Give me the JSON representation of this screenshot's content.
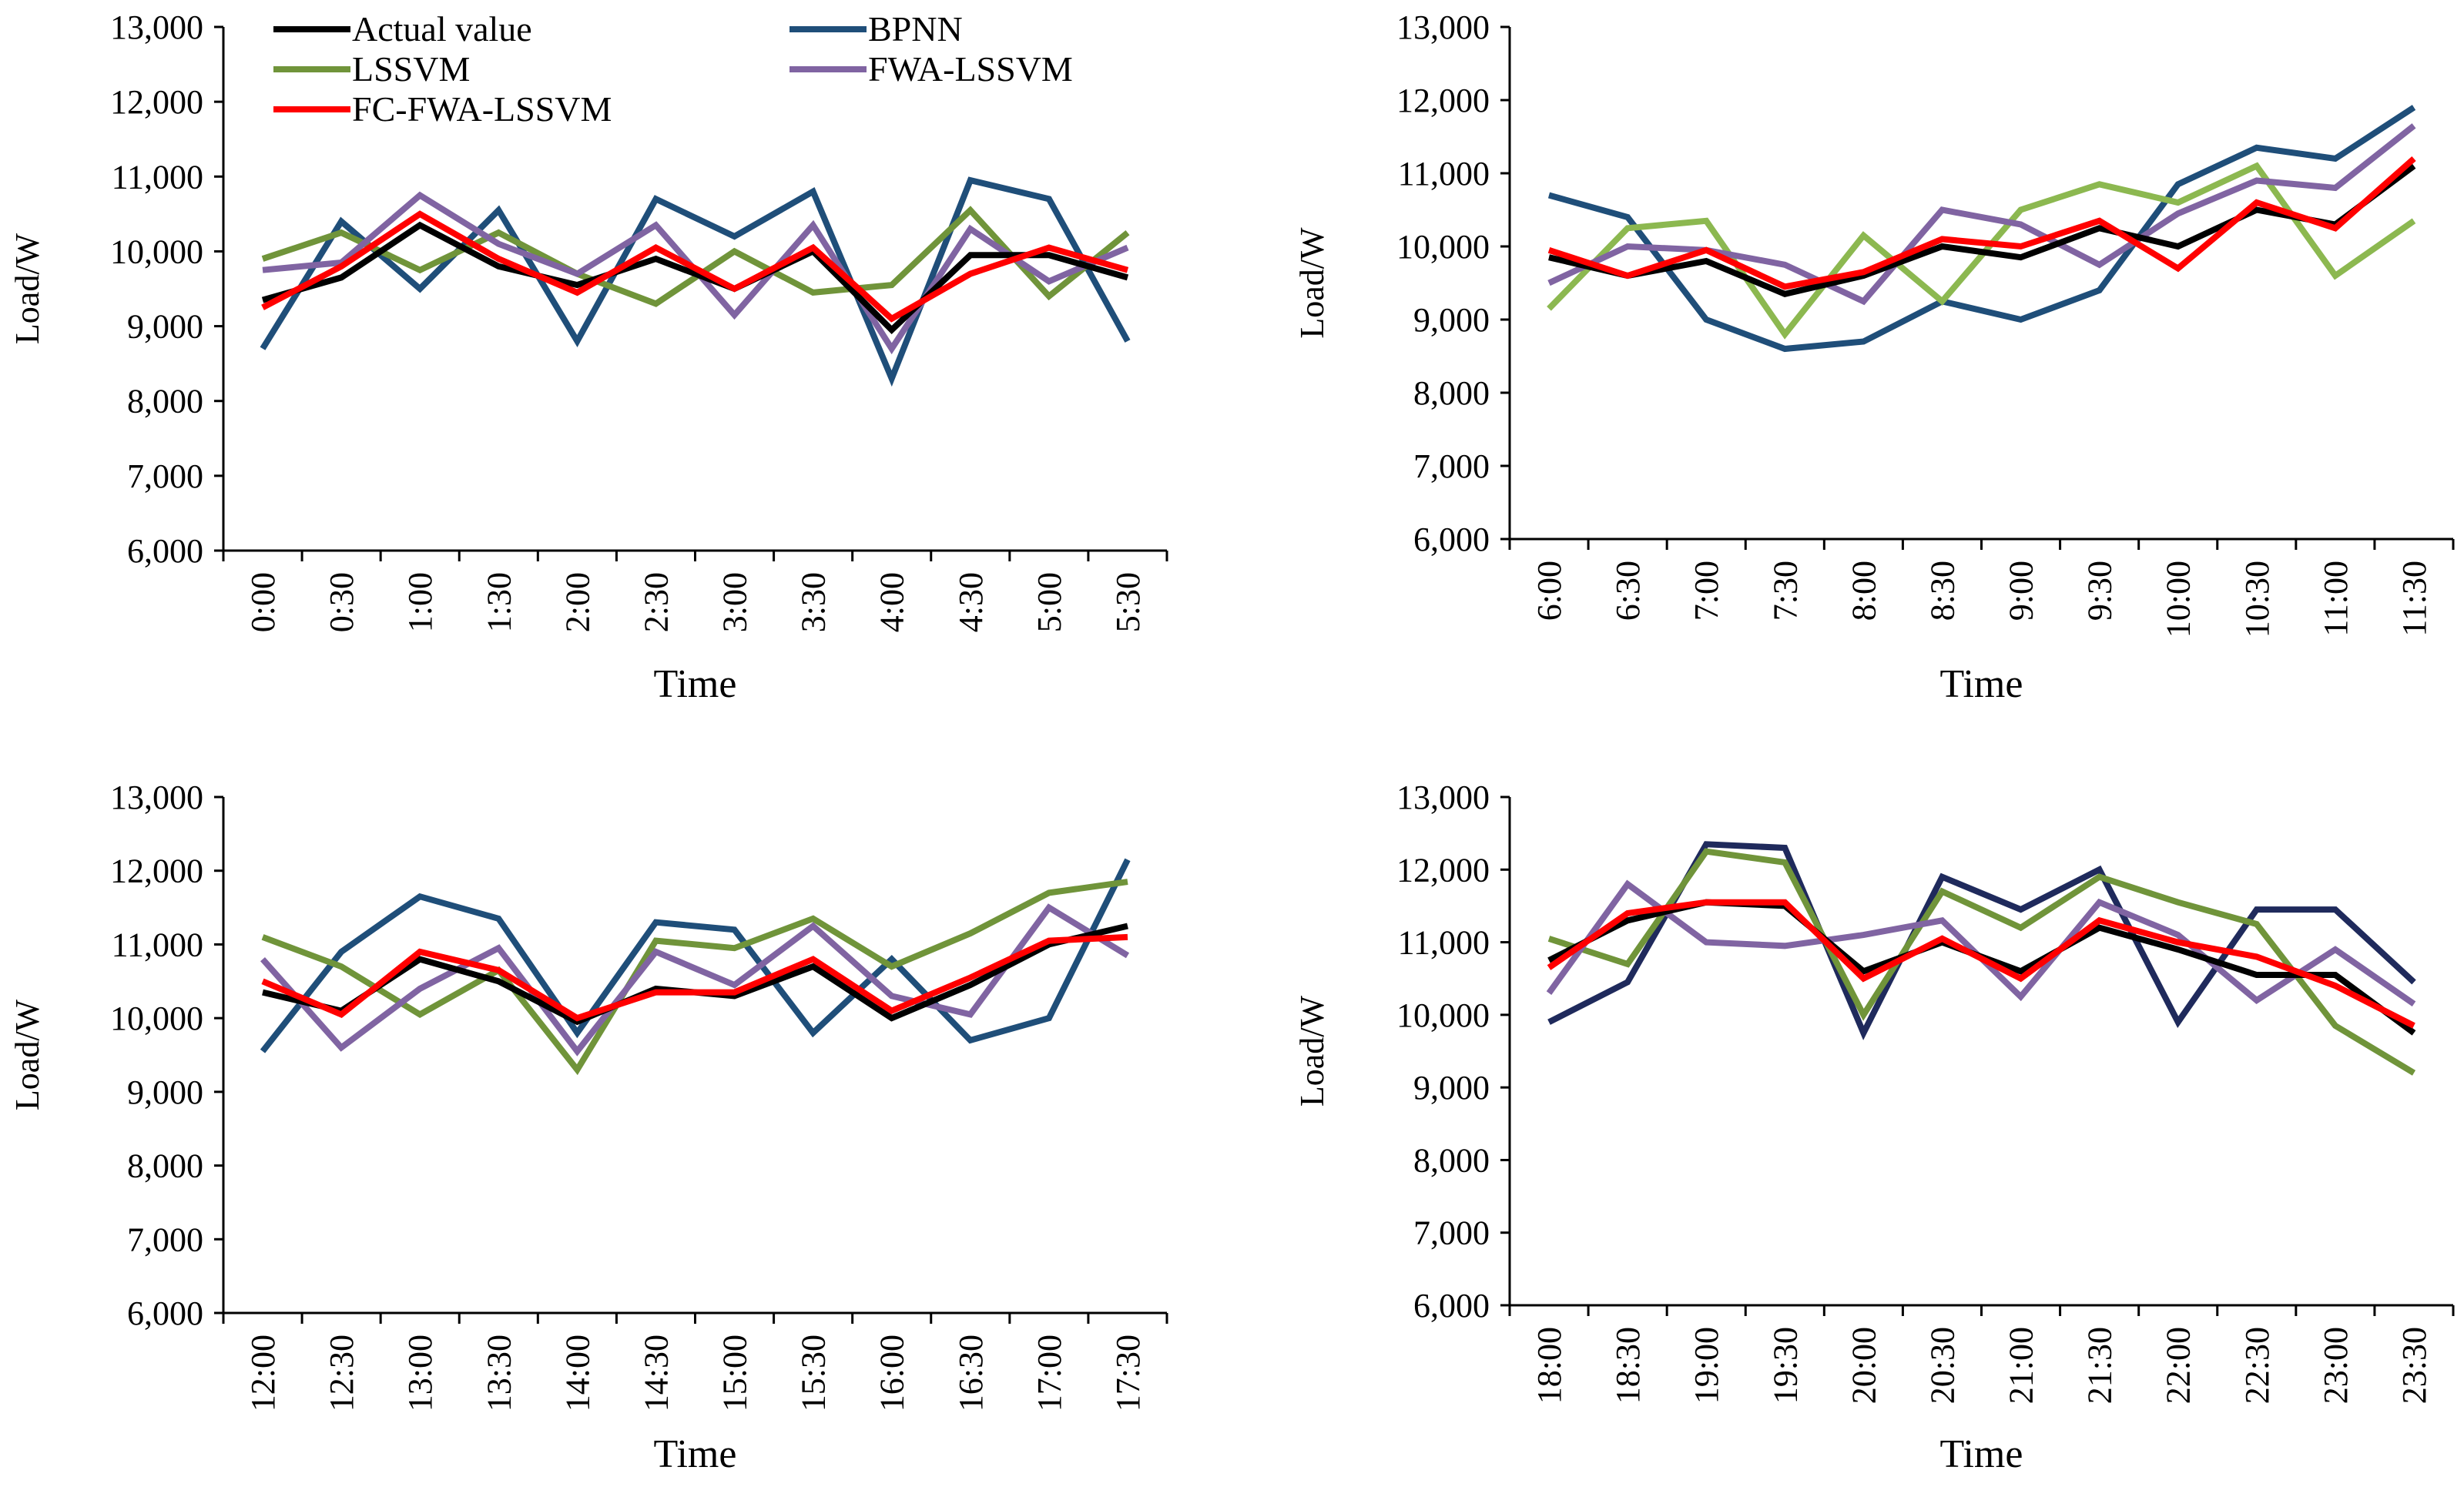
{
  "figure": {
    "series_styles": [
      {
        "name": "Actual value",
        "color": "#000000"
      },
      {
        "name": "BPNN",
        "color": "#1f4e79"
      },
      {
        "name": "LSSVM",
        "color": "#70943a"
      },
      {
        "name": "FWA-LSSVM",
        "color": "#8064a2"
      },
      {
        "name": "FC-FWA-LSSVM",
        "color": "#ff0000"
      }
    ]
  },
  "chart_data": [
    {
      "type": "line",
      "panel": "top-left",
      "xlabel": "Time",
      "ylabel": "Load/W",
      "ylim": [
        6000,
        13000
      ],
      "yticks": [
        "6,000",
        "7,000",
        "8,000",
        "9,000",
        "10,000",
        "11,000",
        "12,000",
        "13,000"
      ],
      "categories": [
        "0:00",
        "0:30",
        "1:00",
        "1:30",
        "2:00",
        "2:30",
        "3:00",
        "3:30",
        "4:00",
        "4:30",
        "5:00",
        "5:30"
      ],
      "legend": {
        "position": "top-left",
        "entries": [
          "Actual value",
          "BPNN",
          "LSSVM",
          "FWA-LSSVM",
          "FC-FWA-LSSVM"
        ]
      },
      "series": [
        {
          "name": "Actual value",
          "color": "#000000",
          "values": [
            9350,
            9650,
            10350,
            9800,
            9550,
            9900,
            9500,
            10000,
            8950,
            9950,
            9950,
            9650
          ]
        },
        {
          "name": "BPNN",
          "color": "#1f4e79",
          "values": [
            8700,
            10400,
            9500,
            10550,
            8800,
            10700,
            10200,
            10800,
            8300,
            10950,
            10700,
            8800
          ]
        },
        {
          "name": "LSSVM",
          "color": "#70943a",
          "values": [
            9900,
            10250,
            9750,
            10250,
            9700,
            9300,
            10000,
            9450,
            9550,
            10550,
            9400,
            10250
          ]
        },
        {
          "name": "FWA-LSSVM",
          "color": "#8064a2",
          "values": [
            9750,
            9850,
            10750,
            10100,
            9700,
            10350,
            9150,
            10350,
            8700,
            10300,
            9600,
            10050
          ]
        },
        {
          "name": "FC-FWA-LSSVM",
          "color": "#ff0000",
          "values": [
            9250,
            9800,
            10500,
            9900,
            9450,
            10050,
            9500,
            10050,
            9100,
            9700,
            10050,
            9750
          ]
        }
      ]
    },
    {
      "type": "line",
      "panel": "top-right",
      "xlabel": "Time",
      "ylabel": "Load/W",
      "ylim": [
        6000,
        13000
      ],
      "yticks": [
        "6,000",
        "7,000",
        "8,000",
        "9,000",
        "10,000",
        "11,000",
        "12,000",
        "13,000"
      ],
      "categories": [
        "6:00",
        "6:30",
        "7:00",
        "7:30",
        "8:00",
        "8:30",
        "9:00",
        "9:30",
        "10:00",
        "10:30",
        "11:00",
        "11:30"
      ],
      "series": [
        {
          "name": "Actual value",
          "color": "#000000",
          "values": [
            9850,
            9600,
            9800,
            9350,
            9600,
            10000,
            9850,
            10250,
            10000,
            10500,
            10300,
            11100
          ]
        },
        {
          "name": "BPNN",
          "color": "#1f4e79",
          "values": [
            10700,
            10400,
            9000,
            8600,
            8700,
            9250,
            9000,
            9400,
            10850,
            11350,
            11200,
            11900
          ]
        },
        {
          "name": "LSSVM",
          "color": "#8cb850",
          "values": [
            9150,
            10250,
            10350,
            8800,
            10150,
            9250,
            10500,
            10850,
            10600,
            11100,
            9600,
            10350
          ]
        },
        {
          "name": "FWA-LSSVM",
          "color": "#8064a2",
          "values": [
            9500,
            10000,
            9950,
            9750,
            9250,
            10500,
            10300,
            9750,
            10450,
            10900,
            10800,
            11650
          ]
        },
        {
          "name": "FC-FWA-LSSVM",
          "color": "#ff0000",
          "values": [
            9950,
            9600,
            9950,
            9450,
            9650,
            10100,
            10000,
            10350,
            9700,
            10600,
            10250,
            11200
          ]
        }
      ]
    },
    {
      "type": "line",
      "panel": "bottom-left",
      "xlabel": "Time",
      "ylabel": "Load/W",
      "ylim": [
        6000,
        13000
      ],
      "yticks": [
        "6,000",
        "7,000",
        "8,000",
        "9,000",
        "10,000",
        "11,000",
        "12,000",
        "13,000"
      ],
      "categories": [
        "12:00",
        "12:30",
        "13:00",
        "13:30",
        "14:00",
        "14:30",
        "15:00",
        "15:30",
        "16:00",
        "16:30",
        "17:00",
        "17:30"
      ],
      "series": [
        {
          "name": "Actual value",
          "color": "#000000",
          "values": [
            10350,
            10100,
            10800,
            10500,
            9950,
            10400,
            10300,
            10700,
            10000,
            10450,
            11000,
            11250
          ]
        },
        {
          "name": "BPNN",
          "color": "#1f4e79",
          "values": [
            9550,
            10900,
            11650,
            11350,
            9800,
            11300,
            11200,
            9800,
            10800,
            9700,
            10000,
            12150
          ]
        },
        {
          "name": "LSSVM",
          "color": "#70943a",
          "values": [
            11100,
            10700,
            10050,
            10650,
            9300,
            11050,
            10950,
            11350,
            10700,
            11150,
            11700,
            11850
          ]
        },
        {
          "name": "FWA-LSSVM",
          "color": "#8064a2",
          "values": [
            10800,
            9600,
            10400,
            10950,
            9550,
            10900,
            10450,
            11250,
            10300,
            10050,
            11500,
            10850
          ]
        },
        {
          "name": "FC-FWA-LSSVM",
          "color": "#ff0000",
          "values": [
            10500,
            10050,
            10900,
            10650,
            10000,
            10350,
            10350,
            10800,
            10100,
            10550,
            11050,
            11100
          ]
        }
      ]
    },
    {
      "type": "line",
      "panel": "bottom-right",
      "xlabel": "Time",
      "ylabel": "Load/W",
      "ylim": [
        6000,
        13000
      ],
      "yticks": [
        "6,000",
        "7,000",
        "8,000",
        "9,000",
        "10,000",
        "11,000",
        "12,000",
        "13,000"
      ],
      "categories": [
        "18:00",
        "18:30",
        "19:00",
        "19:30",
        "20:00",
        "20:30",
        "21:00",
        "21:30",
        "22:00",
        "22:30",
        "23:00",
        "23:30"
      ],
      "series": [
        {
          "name": "Actual value",
          "color": "#000000",
          "values": [
            10750,
            11300,
            11550,
            11500,
            10600,
            11000,
            10600,
            11200,
            10900,
            10550,
            10550,
            9750
          ]
        },
        {
          "name": "BPNN",
          "color": "#1f2a5c",
          "values": [
            9900,
            10450,
            12350,
            12300,
            9750,
            11900,
            11450,
            12000,
            9900,
            11450,
            11450,
            10450
          ]
        },
        {
          "name": "LSSVM",
          "color": "#70943a",
          "values": [
            11050,
            10700,
            12250,
            12100,
            10000,
            11700,
            11200,
            11900,
            11550,
            11250,
            9850,
            9200
          ]
        },
        {
          "name": "FWA-LSSVM",
          "color": "#8064a2",
          "values": [
            10300,
            11800,
            11000,
            10950,
            11100,
            11300,
            10250,
            11550,
            11100,
            10200,
            10900,
            10150
          ]
        },
        {
          "name": "FC-FWA-LSSVM",
          "color": "#ff0000",
          "values": [
            10650,
            11400,
            11550,
            11550,
            10500,
            11050,
            10500,
            11300,
            11000,
            10800,
            10400,
            9850
          ]
        }
      ]
    }
  ]
}
